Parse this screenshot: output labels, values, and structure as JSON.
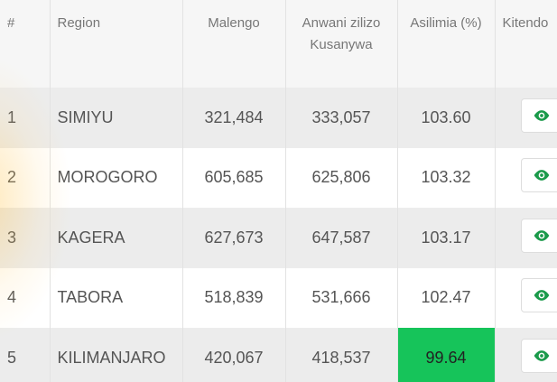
{
  "table": {
    "header": [
      "#",
      "Region",
      "Malengo",
      "Anwani zilizo Kusanywa",
      "Asilimia (%)",
      "Kitendo"
    ],
    "rows": [
      [
        "1",
        "SIMIYU",
        "321,484",
        "333,057",
        "103.60"
      ],
      [
        "2",
        "MOROGORO",
        "605,685",
        "625,806",
        "103.32"
      ],
      [
        "3",
        "KAGERA",
        "627,673",
        "647,587",
        "103.17"
      ],
      [
        "4",
        "TABORA",
        "518,839",
        "531,666",
        "102.47"
      ],
      [
        "5",
        "KILIMANJARO",
        "420,067",
        "418,537",
        "99.64"
      ]
    ]
  }
}
